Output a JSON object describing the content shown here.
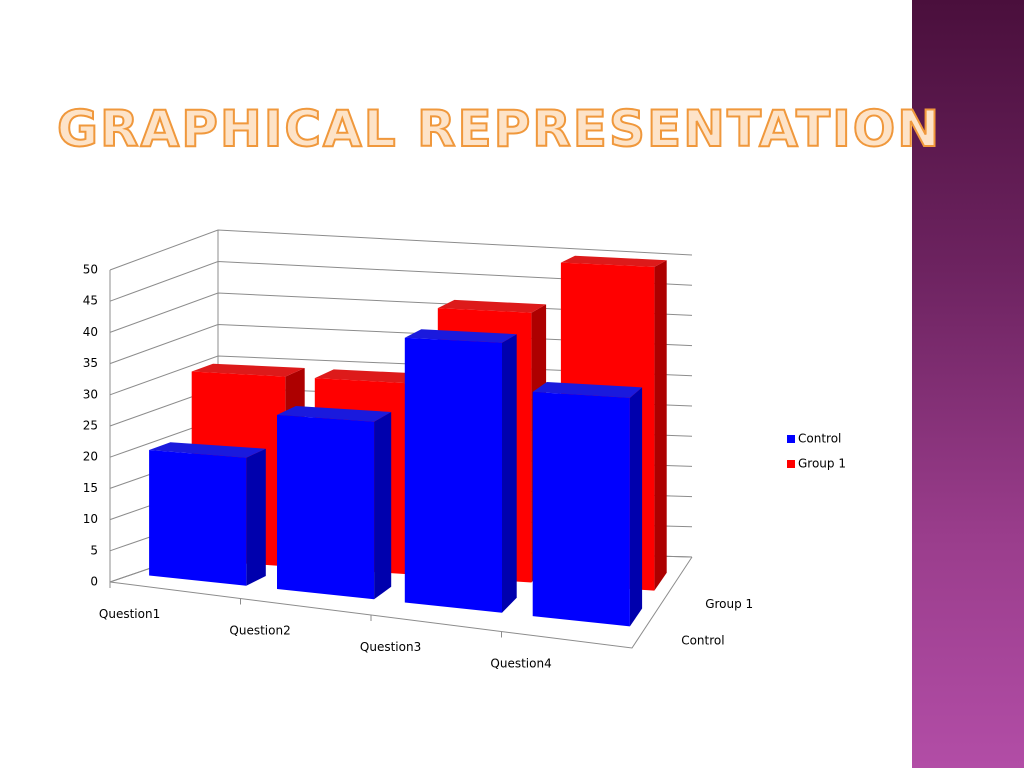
{
  "title": "GRAPHICAL REPRESENTATION",
  "chart_data": {
    "type": "bar3d",
    "categories": [
      "Question1",
      "Question2",
      "Question3",
      "Question4"
    ],
    "series": [
      {
        "name": "Control",
        "color": "#0000ff",
        "values": [
          20,
          27,
          40,
          33
        ]
      },
      {
        "name": "Group 1",
        "color": "#ff0000",
        "values": [
          30,
          30,
          42,
          50
        ]
      }
    ],
    "ylim": [
      0,
      50
    ],
    "yticks": [
      0,
      5,
      10,
      15,
      20,
      25,
      30,
      35,
      40,
      45,
      50
    ],
    "grid": true,
    "legend": "right"
  }
}
